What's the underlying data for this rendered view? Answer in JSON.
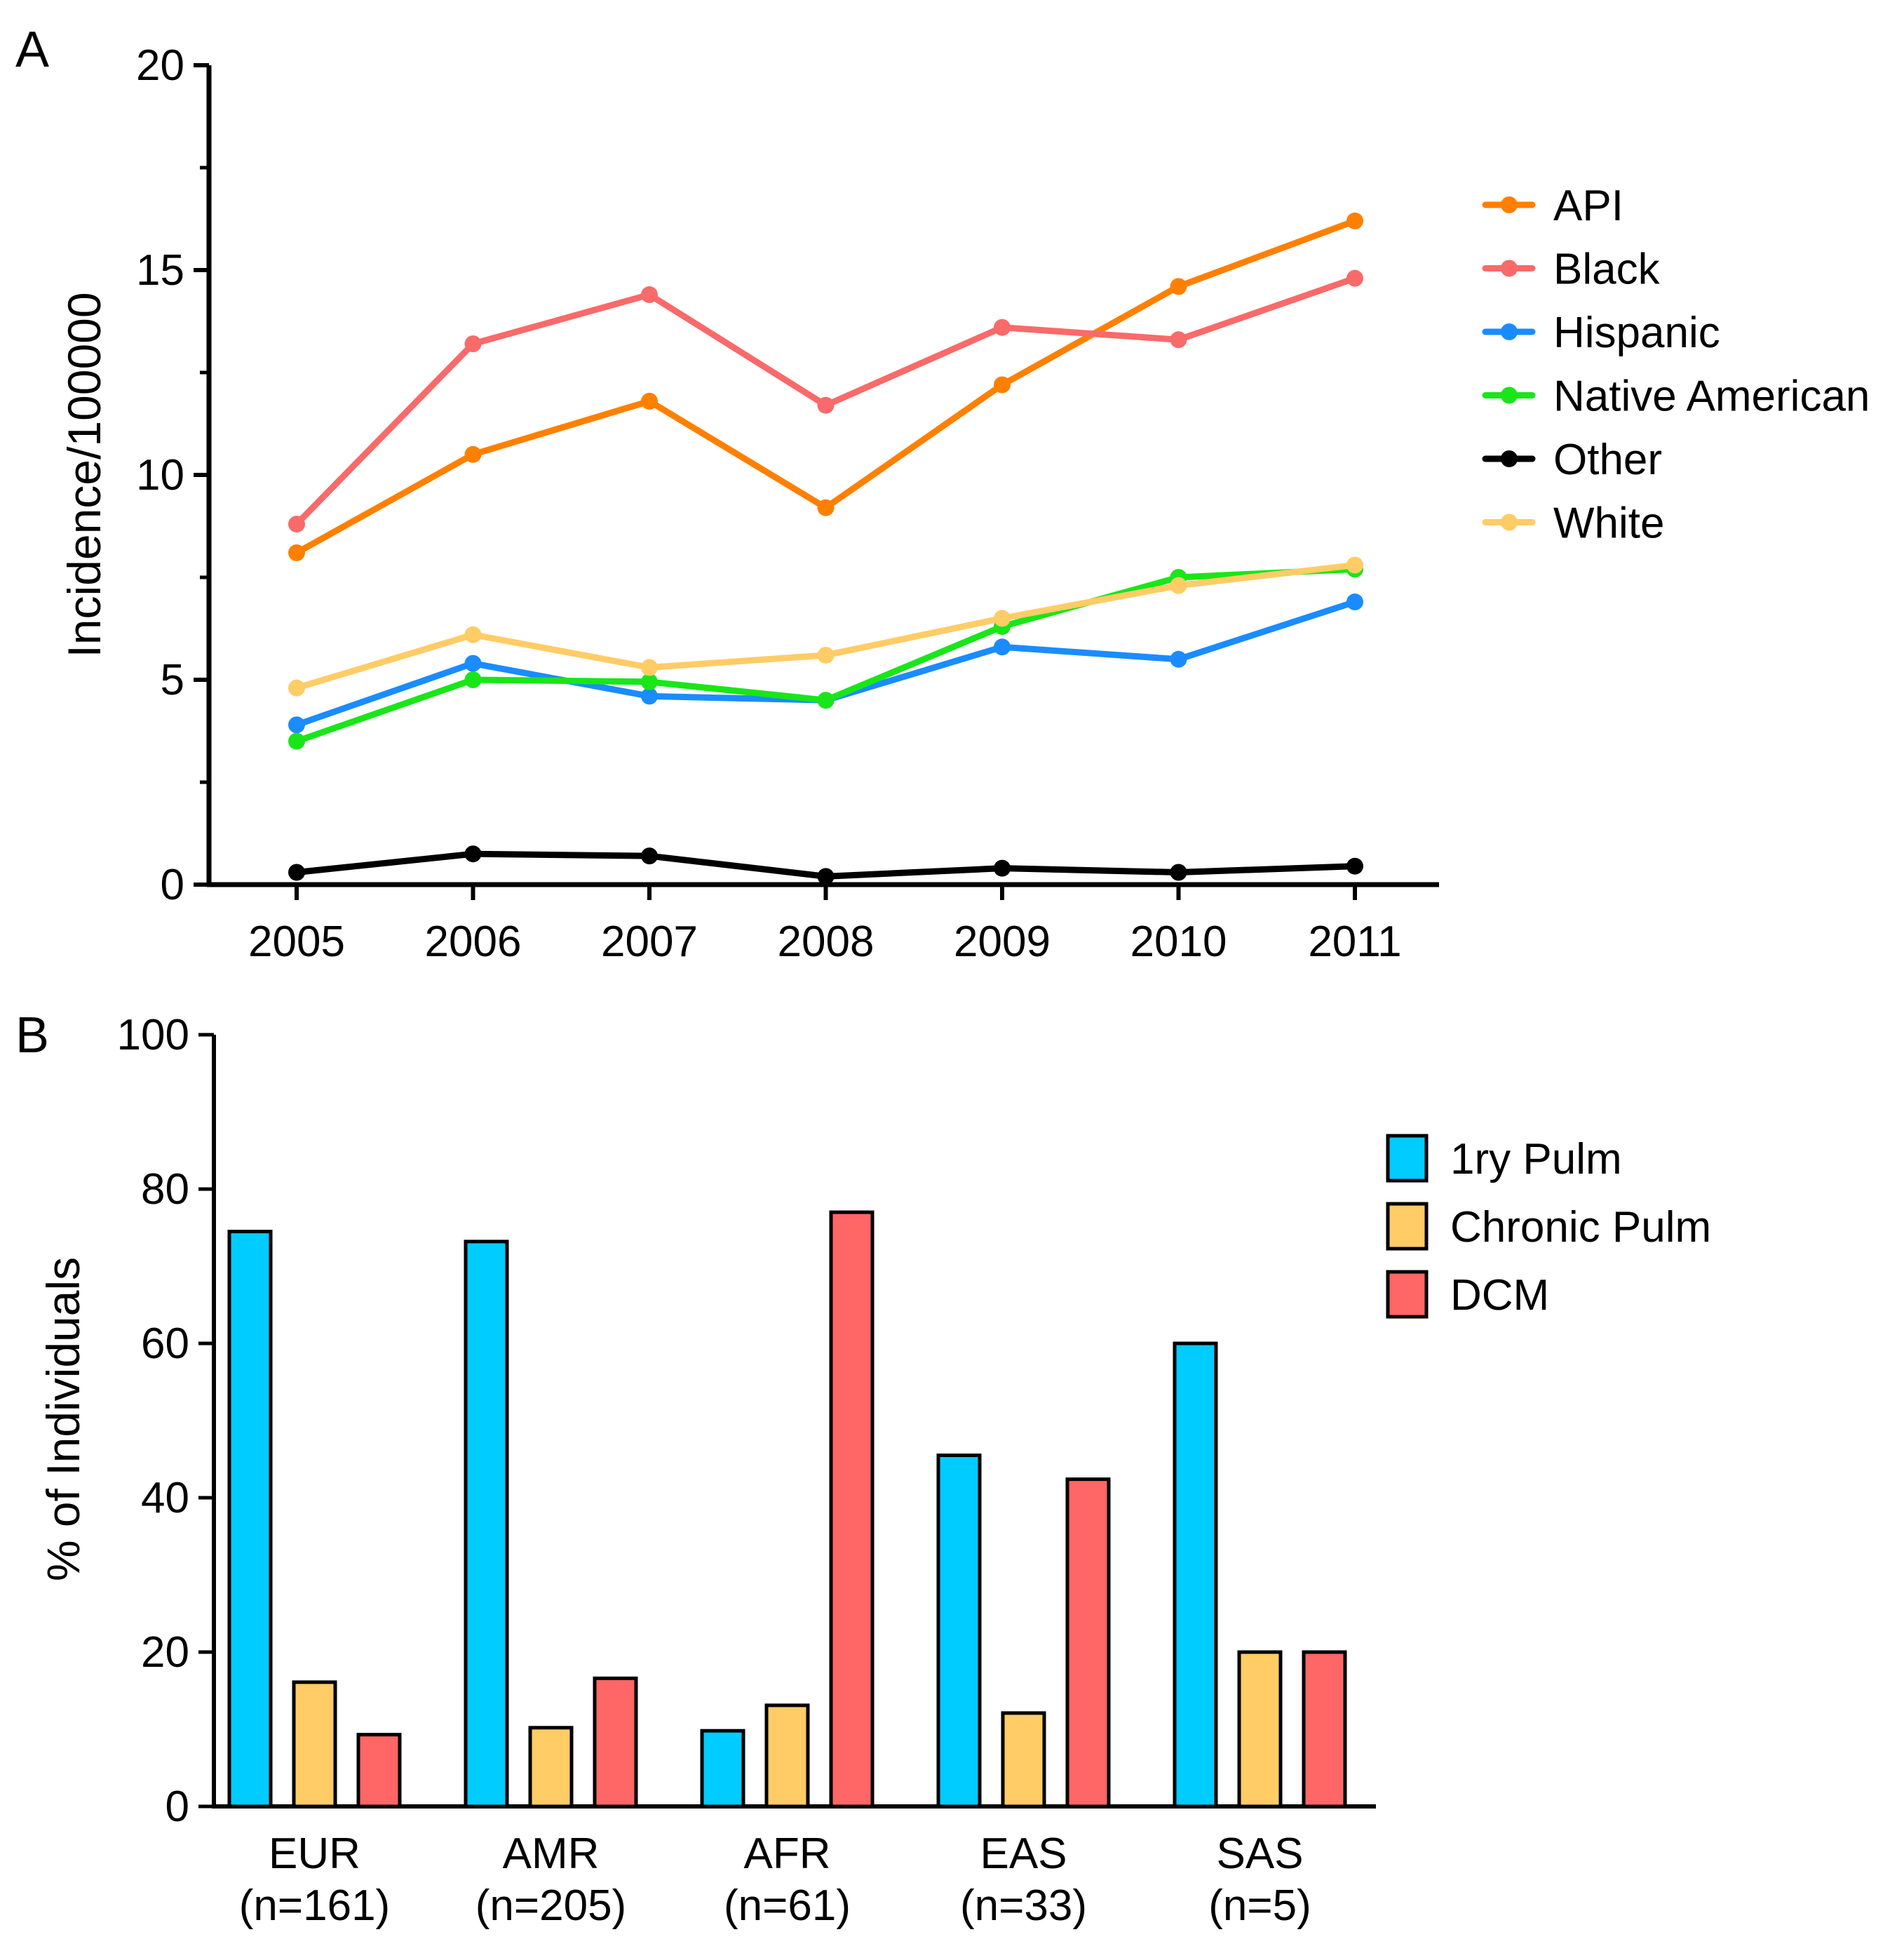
{
  "panels": {
    "a": {
      "label": "A"
    },
    "b": {
      "label": "B"
    }
  },
  "chart_data": [
    {
      "type": "line",
      "ylabel": "Incidence/100000",
      "xlabel": "",
      "x": [
        "2005",
        "2006",
        "2007",
        "2008",
        "2009",
        "2010",
        "2011"
      ],
      "ylim": [
        0,
        20
      ],
      "yticks": [
        "0",
        "5",
        "10",
        "15",
        "20"
      ],
      "legend_position": "right",
      "grid": false,
      "series": [
        {
          "name": "API",
          "color": "#FF8000",
          "values": [
            8.1,
            10.5,
            11.8,
            9.2,
            12.2,
            14.6,
            16.2
          ]
        },
        {
          "name": "Black",
          "color": "#F96A6A",
          "values": [
            8.8,
            13.2,
            14.4,
            11.7,
            13.6,
            13.3,
            14.8
          ]
        },
        {
          "name": "Hispanic",
          "color": "#1A8CFF",
          "values": [
            3.9,
            5.4,
            4.6,
            4.5,
            5.8,
            5.5,
            6.9
          ]
        },
        {
          "name": "Native American",
          "color": "#19E619",
          "values": [
            3.5,
            5.0,
            4.95,
            4.5,
            6.3,
            7.5,
            7.7
          ]
        },
        {
          "name": "Other",
          "color": "#000000",
          "values": [
            0.3,
            0.75,
            0.7,
            0.2,
            0.4,
            0.3,
            0.45
          ]
        },
        {
          "name": "White",
          "color": "#FFCC66",
          "values": [
            4.8,
            6.1,
            5.3,
            5.6,
            6.5,
            7.3,
            7.8
          ]
        }
      ]
    },
    {
      "type": "bar",
      "ylabel": "% of Individuals",
      "xlabel": "",
      "categories": [
        "EUR",
        "AMR",
        "AFR",
        "EAS",
        "SAS"
      ],
      "category_sublabels": [
        "(n=161)",
        "(n=205)",
        "(n=61)",
        "(n=33)",
        "(n=5)"
      ],
      "ylim": [
        0,
        100
      ],
      "yticks": [
        "0",
        "20",
        "40",
        "60",
        "80",
        "100"
      ],
      "legend_position": "right",
      "grid": false,
      "series": [
        {
          "name": "1ry Pulm",
          "color": "#00CCFF",
          "values": [
            74.5,
            73.2,
            9.8,
            45.5,
            60.0
          ]
        },
        {
          "name": "Chronic Pulm",
          "color": "#FFCC66",
          "values": [
            16.1,
            10.2,
            13.1,
            12.1,
            20.0
          ]
        },
        {
          "name": "DCM",
          "color": "#FF6666",
          "values": [
            9.3,
            16.6,
            77.0,
            42.4,
            20.0
          ]
        }
      ]
    }
  ]
}
